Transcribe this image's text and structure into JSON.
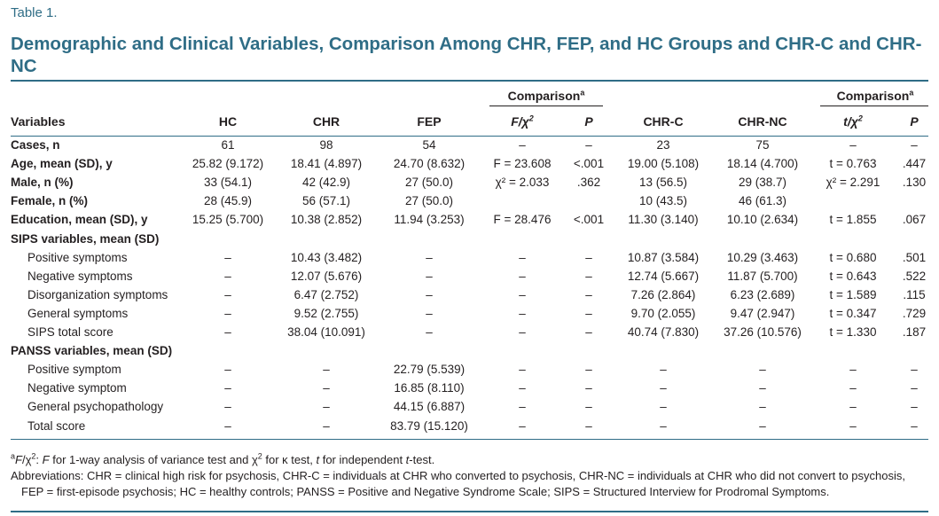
{
  "table_label": "Table 1.",
  "title": "Demographic and Clinical Variables, Comparison Among CHR, FEP, and HC Groups and CHR-C and CHR-NC",
  "header": {
    "comparison_label": "Comparison",
    "comparison_sup": "a",
    "variables": "Variables",
    "hc": "HC",
    "chr": "CHR",
    "fep": "FEP",
    "f_chi_stat": "F/χ",
    "f_chi_sup": "2",
    "p1": "P",
    "chr_c": "CHR-C",
    "chr_nc": "CHR-NC",
    "t_chi_stat": "t/χ",
    "t_chi_sup": "2",
    "p2": "P"
  },
  "rows": [
    {
      "label": "Cases, n",
      "bold": true,
      "indent": false,
      "hc": "61",
      "chr": "98",
      "fep": "54",
      "stat1": "–",
      "p1": "–",
      "chrc": "23",
      "chrnc": "75",
      "stat2": "–",
      "p2": "–"
    },
    {
      "label": "Age, mean (SD), y",
      "bold": true,
      "indent": false,
      "hc": "25.82 (9.172)",
      "chr": "18.41 (4.897)",
      "fep": "24.70 (8.632)",
      "stat1": "F = 23.608",
      "p1": "<.001",
      "chrc": "19.00 (5.108)",
      "chrnc": "18.14 (4.700)",
      "stat2": "t = 0.763",
      "p2": ".447"
    },
    {
      "label": "Male, n (%)",
      "bold": true,
      "indent": false,
      "hc": "33 (54.1)",
      "chr": "42 (42.9)",
      "fep": "27 (50.0)",
      "stat1": "χ² = 2.033",
      "p1": ".362",
      "chrc": "13 (56.5)",
      "chrnc": "29 (38.7)",
      "stat2": "χ² = 2.291",
      "p2": ".130"
    },
    {
      "label": "Female, n (%)",
      "bold": true,
      "indent": false,
      "hc": "28 (45.9)",
      "chr": "56 (57.1)",
      "fep": "27 (50.0)",
      "stat1": "",
      "p1": "",
      "chrc": "10 (43.5)",
      "chrnc": "46 (61.3)",
      "stat2": "",
      "p2": ""
    },
    {
      "label": "Education, mean (SD), y",
      "bold": true,
      "indent": false,
      "hc": "15.25 (5.700)",
      "chr": "10.38 (2.852)",
      "fep": "11.94 (3.253)",
      "stat1": "F = 28.476",
      "p1": "<.001",
      "chrc": "11.30 (3.140)",
      "chrnc": "10.10 (2.634)",
      "stat2": "t = 1.855",
      "p2": ".067"
    },
    {
      "label": "SIPS variables, mean (SD)",
      "bold": true,
      "indent": false,
      "hc": "",
      "chr": "",
      "fep": "",
      "stat1": "",
      "p1": "",
      "chrc": "",
      "chrnc": "",
      "stat2": "",
      "p2": ""
    },
    {
      "label": "Positive symptoms",
      "bold": false,
      "indent": true,
      "hc": "–",
      "chr": "10.43 (3.482)",
      "fep": "–",
      "stat1": "–",
      "p1": "–",
      "chrc": "10.87 (3.584)",
      "chrnc": "10.29 (3.463)",
      "stat2": "t = 0.680",
      "p2": ".501"
    },
    {
      "label": "Negative symptoms",
      "bold": false,
      "indent": true,
      "hc": "–",
      "chr": "12.07 (5.676)",
      "fep": "–",
      "stat1": "–",
      "p1": "–",
      "chrc": "12.74 (5.667)",
      "chrnc": "11.87 (5.700)",
      "stat2": "t = 0.643",
      "p2": ".522"
    },
    {
      "label": "Disorganization symptoms",
      "bold": false,
      "indent": true,
      "hc": "–",
      "chr": "6.47 (2.752)",
      "fep": "–",
      "stat1": "–",
      "p1": "–",
      "chrc": "7.26 (2.864)",
      "chrnc": "6.23 (2.689)",
      "stat2": "t = 1.589",
      "p2": ".115"
    },
    {
      "label": "General symptoms",
      "bold": false,
      "indent": true,
      "hc": "–",
      "chr": "9.52 (2.755)",
      "fep": "–",
      "stat1": "–",
      "p1": "–",
      "chrc": "9.70 (2.055)",
      "chrnc": "9.47 (2.947)",
      "stat2": "t = 0.347",
      "p2": ".729"
    },
    {
      "label": "SIPS total score",
      "bold": false,
      "indent": true,
      "hc": "–",
      "chr": "38.04 (10.091)",
      "fep": "–",
      "stat1": "–",
      "p1": "–",
      "chrc": "40.74 (7.830)",
      "chrnc": "37.26 (10.576)",
      "stat2": "t = 1.330",
      "p2": ".187"
    },
    {
      "label": "PANSS variables, mean (SD)",
      "bold": true,
      "indent": false,
      "hc": "",
      "chr": "",
      "fep": "",
      "stat1": "",
      "p1": "",
      "chrc": "",
      "chrnc": "",
      "stat2": "",
      "p2": ""
    },
    {
      "label": "Positive symptom",
      "bold": false,
      "indent": true,
      "hc": "–",
      "chr": "–",
      "fep": "22.79 (5.539)",
      "stat1": "–",
      "p1": "–",
      "chrc": "–",
      "chrnc": "–",
      "stat2": "–",
      "p2": "–"
    },
    {
      "label": "Negative symptom",
      "bold": false,
      "indent": true,
      "hc": "–",
      "chr": "–",
      "fep": "16.85 (8.110)",
      "stat1": "–",
      "p1": "–",
      "chrc": "–",
      "chrnc": "–",
      "stat2": "–",
      "p2": "–"
    },
    {
      "label": "General psychopathology",
      "bold": false,
      "indent": true,
      "hc": "–",
      "chr": "–",
      "fep": "44.15 (6.887)",
      "stat1": "–",
      "p1": "–",
      "chrc": "–",
      "chrnc": "–",
      "stat2": "–",
      "p2": "–"
    },
    {
      "label": "Total score",
      "bold": false,
      "indent": true,
      "hc": "–",
      "chr": "–",
      "fep": "83.79 (15.120)",
      "stat1": "–",
      "p1": "–",
      "chrc": "–",
      "chrnc": "–",
      "stat2": "–",
      "p2": "–"
    }
  ],
  "footnote_a": "aF/χ2: F for 1-way analysis of variance test and χ2 for κ test, t for independent t-test.",
  "abbrev_1": "Abbreviations: CHR = clinical high risk for psychosis, CHR-C = individuals at CHR who converted to psychosis, CHR-NC = individuals at CHR who did not convert to psychosis,",
  "abbrev_2": "FEP = first-episode psychosis; HC = healthy controls; PANSS = Positive and Negative Syndrome Scale; SIPS = Structured Interview for Prodromal Symptoms."
}
